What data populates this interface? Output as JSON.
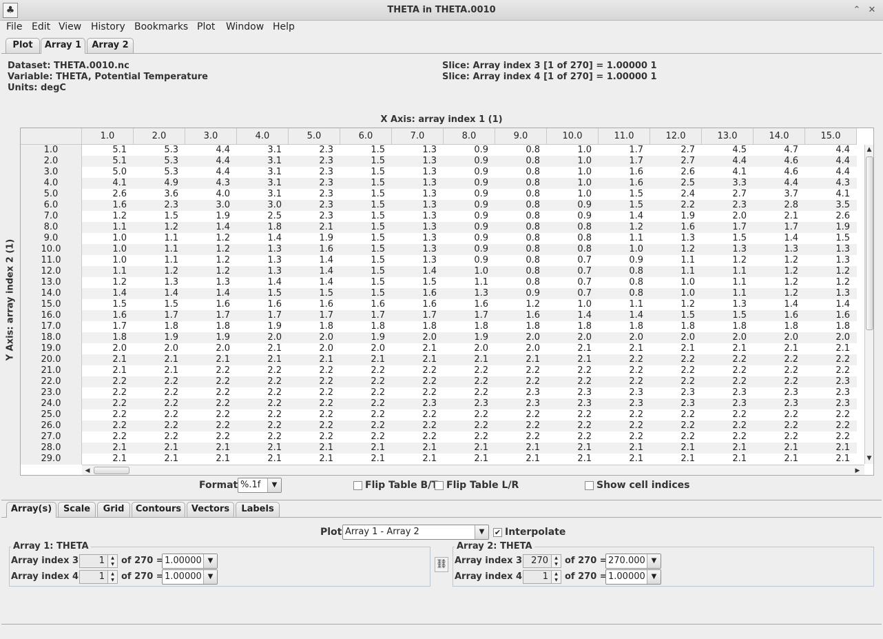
{
  "window": {
    "title": "THETA in THETA.0010"
  },
  "menu": [
    "File",
    "Edit",
    "View",
    "History",
    "Bookmarks",
    "Plot",
    "Window",
    "Help"
  ],
  "top_tabs": [
    "Plot",
    "Array 1",
    "Array 2"
  ],
  "info": {
    "dataset": "Dataset: THETA.0010.nc",
    "variable": "Variable: THETA, Potential Temperature",
    "units": "Units: degC",
    "slice3": "Slice: Array index 3 [1 of 270] = 1.00000 1",
    "slice4": "Slice: Array index 4 [1 of 270] = 1.00000 1"
  },
  "table": {
    "x_axis_label": "X Axis: array index 1 (1)",
    "y_axis_label": "Y Axis: array index 2 (1)",
    "columns": [
      "1.0",
      "2.0",
      "3.0",
      "4.0",
      "5.0",
      "6.0",
      "7.0",
      "8.0",
      "9.0",
      "10.0",
      "11.0",
      "12.0",
      "13.0",
      "14.0",
      "15.0"
    ],
    "rows": [
      {
        "label": "1.0",
        "values": [
          "5.1",
          "5.3",
          "4.4",
          "3.1",
          "2.3",
          "1.5",
          "1.3",
          "0.9",
          "0.8",
          "1.0",
          "1.7",
          "2.7",
          "4.5",
          "4.7",
          "4.4"
        ]
      },
      {
        "label": "2.0",
        "values": [
          "5.1",
          "5.3",
          "4.4",
          "3.1",
          "2.3",
          "1.5",
          "1.3",
          "0.9",
          "0.8",
          "1.0",
          "1.7",
          "2.7",
          "4.4",
          "4.6",
          "4.4"
        ]
      },
      {
        "label": "3.0",
        "values": [
          "5.0",
          "5.3",
          "4.4",
          "3.1",
          "2.3",
          "1.5",
          "1.3",
          "0.9",
          "0.8",
          "1.0",
          "1.6",
          "2.6",
          "4.1",
          "4.6",
          "4.4"
        ]
      },
      {
        "label": "4.0",
        "values": [
          "4.1",
          "4.9",
          "4.3",
          "3.1",
          "2.3",
          "1.5",
          "1.3",
          "0.9",
          "0.8",
          "1.0",
          "1.6",
          "2.5",
          "3.3",
          "4.4",
          "4.3"
        ]
      },
      {
        "label": "5.0",
        "values": [
          "2.6",
          "3.6",
          "4.0",
          "3.1",
          "2.3",
          "1.5",
          "1.3",
          "0.9",
          "0.8",
          "1.0",
          "1.5",
          "2.4",
          "2.7",
          "3.7",
          "4.1"
        ]
      },
      {
        "label": "6.0",
        "values": [
          "1.6",
          "2.3",
          "3.0",
          "3.0",
          "2.3",
          "1.5",
          "1.3",
          "0.9",
          "0.8",
          "0.9",
          "1.5",
          "2.2",
          "2.3",
          "2.8",
          "3.5"
        ]
      },
      {
        "label": "7.0",
        "values": [
          "1.2",
          "1.5",
          "1.9",
          "2.5",
          "2.3",
          "1.5",
          "1.3",
          "0.9",
          "0.8",
          "0.9",
          "1.4",
          "1.9",
          "2.0",
          "2.1",
          "2.6"
        ]
      },
      {
        "label": "8.0",
        "values": [
          "1.1",
          "1.2",
          "1.4",
          "1.8",
          "2.1",
          "1.5",
          "1.3",
          "0.9",
          "0.8",
          "0.8",
          "1.2",
          "1.6",
          "1.7",
          "1.7",
          "1.9"
        ]
      },
      {
        "label": "9.0",
        "values": [
          "1.0",
          "1.1",
          "1.2",
          "1.4",
          "1.9",
          "1.5",
          "1.3",
          "0.9",
          "0.8",
          "0.8",
          "1.1",
          "1.3",
          "1.5",
          "1.4",
          "1.5"
        ]
      },
      {
        "label": "10.0",
        "values": [
          "1.0",
          "1.1",
          "1.2",
          "1.3",
          "1.6",
          "1.5",
          "1.3",
          "0.9",
          "0.8",
          "0.8",
          "1.0",
          "1.2",
          "1.3",
          "1.3",
          "1.3"
        ]
      },
      {
        "label": "11.0",
        "values": [
          "1.0",
          "1.1",
          "1.2",
          "1.3",
          "1.4",
          "1.5",
          "1.3",
          "0.9",
          "0.8",
          "0.7",
          "0.9",
          "1.1",
          "1.2",
          "1.2",
          "1.3"
        ]
      },
      {
        "label": "12.0",
        "values": [
          "1.1",
          "1.2",
          "1.2",
          "1.3",
          "1.4",
          "1.5",
          "1.4",
          "1.0",
          "0.8",
          "0.7",
          "0.8",
          "1.1",
          "1.1",
          "1.2",
          "1.2"
        ]
      },
      {
        "label": "13.0",
        "values": [
          "1.2",
          "1.3",
          "1.3",
          "1.4",
          "1.4",
          "1.5",
          "1.5",
          "1.1",
          "0.8",
          "0.7",
          "0.8",
          "1.0",
          "1.1",
          "1.2",
          "1.2"
        ]
      },
      {
        "label": "14.0",
        "values": [
          "1.4",
          "1.4",
          "1.4",
          "1.5",
          "1.5",
          "1.5",
          "1.6",
          "1.3",
          "0.9",
          "0.7",
          "0.8",
          "1.0",
          "1.1",
          "1.2",
          "1.3"
        ]
      },
      {
        "label": "15.0",
        "values": [
          "1.5",
          "1.5",
          "1.6",
          "1.6",
          "1.6",
          "1.6",
          "1.6",
          "1.6",
          "1.2",
          "1.0",
          "1.1",
          "1.2",
          "1.3",
          "1.4",
          "1.4"
        ]
      },
      {
        "label": "16.0",
        "values": [
          "1.6",
          "1.7",
          "1.7",
          "1.7",
          "1.7",
          "1.7",
          "1.7",
          "1.7",
          "1.6",
          "1.4",
          "1.4",
          "1.5",
          "1.5",
          "1.6",
          "1.6"
        ]
      },
      {
        "label": "17.0",
        "values": [
          "1.7",
          "1.8",
          "1.8",
          "1.9",
          "1.8",
          "1.8",
          "1.8",
          "1.8",
          "1.8",
          "1.8",
          "1.8",
          "1.8",
          "1.8",
          "1.8",
          "1.8"
        ]
      },
      {
        "label": "18.0",
        "values": [
          "1.8",
          "1.9",
          "1.9",
          "2.0",
          "2.0",
          "1.9",
          "2.0",
          "1.9",
          "2.0",
          "2.0",
          "2.0",
          "2.0",
          "2.0",
          "2.0",
          "2.0"
        ]
      },
      {
        "label": "19.0",
        "values": [
          "2.0",
          "2.0",
          "2.0",
          "2.1",
          "2.0",
          "2.0",
          "2.1",
          "2.0",
          "2.0",
          "2.1",
          "2.1",
          "2.1",
          "2.1",
          "2.1",
          "2.1"
        ]
      },
      {
        "label": "20.0",
        "values": [
          "2.1",
          "2.1",
          "2.1",
          "2.1",
          "2.1",
          "2.1",
          "2.1",
          "2.1",
          "2.1",
          "2.1",
          "2.2",
          "2.2",
          "2.2",
          "2.2",
          "2.2"
        ]
      },
      {
        "label": "21.0",
        "values": [
          "2.1",
          "2.1",
          "2.2",
          "2.2",
          "2.2",
          "2.2",
          "2.2",
          "2.2",
          "2.2",
          "2.2",
          "2.2",
          "2.2",
          "2.2",
          "2.2",
          "2.2"
        ]
      },
      {
        "label": "22.0",
        "values": [
          "2.2",
          "2.2",
          "2.2",
          "2.2",
          "2.2",
          "2.2",
          "2.2",
          "2.2",
          "2.2",
          "2.2",
          "2.2",
          "2.2",
          "2.2",
          "2.2",
          "2.3"
        ]
      },
      {
        "label": "23.0",
        "values": [
          "2.2",
          "2.2",
          "2.2",
          "2.2",
          "2.2",
          "2.2",
          "2.2",
          "2.2",
          "2.3",
          "2.3",
          "2.3",
          "2.3",
          "2.3",
          "2.3",
          "2.3"
        ]
      },
      {
        "label": "24.0",
        "values": [
          "2.2",
          "2.2",
          "2.2",
          "2.2",
          "2.2",
          "2.2",
          "2.3",
          "2.3",
          "2.3",
          "2.3",
          "2.3",
          "2.3",
          "2.3",
          "2.3",
          "2.3"
        ]
      },
      {
        "label": "25.0",
        "values": [
          "2.2",
          "2.2",
          "2.2",
          "2.2",
          "2.2",
          "2.2",
          "2.2",
          "2.2",
          "2.2",
          "2.2",
          "2.2",
          "2.2",
          "2.2",
          "2.2",
          "2.2"
        ]
      },
      {
        "label": "26.0",
        "values": [
          "2.2",
          "2.2",
          "2.2",
          "2.2",
          "2.2",
          "2.2",
          "2.2",
          "2.2",
          "2.2",
          "2.2",
          "2.2",
          "2.2",
          "2.2",
          "2.2",
          "2.2"
        ]
      },
      {
        "label": "27.0",
        "values": [
          "2.2",
          "2.2",
          "2.2",
          "2.2",
          "2.2",
          "2.2",
          "2.2",
          "2.2",
          "2.2",
          "2.2",
          "2.2",
          "2.2",
          "2.2",
          "2.2",
          "2.2"
        ]
      },
      {
        "label": "28.0",
        "values": [
          "2.1",
          "2.1",
          "2.1",
          "2.1",
          "2.1",
          "2.1",
          "2.1",
          "2.1",
          "2.1",
          "2.1",
          "2.1",
          "2.1",
          "2.1",
          "2.1",
          "2.1"
        ]
      },
      {
        "label": "29.0",
        "values": [
          "2.1",
          "2.1",
          "2.1",
          "2.1",
          "2.1",
          "2.1",
          "2.1",
          "2.1",
          "2.1",
          "2.1",
          "2.1",
          "2.1",
          "2.1",
          "2.1",
          "2.1"
        ]
      }
    ]
  },
  "controls": {
    "format_label": "Format:",
    "format_value": "%.1f",
    "flip_bt": "Flip Table B/T",
    "flip_lr": "Flip Table L/R",
    "show_indices": "Show cell indices"
  },
  "bottom_tabs": [
    "Array(s)",
    "Scale",
    "Grid",
    "Contours",
    "Vectors",
    "Labels"
  ],
  "plot_panel": {
    "plot_label": "Plot",
    "plot_value": "Array 1 - Array 2",
    "interpolate_label": "Interpolate",
    "array1": {
      "legend": "Array 1: THETA",
      "idx3_label": "Array index 3:",
      "idx3_value": "1",
      "idx3_of": "of 270 =",
      "idx3_combo": "1.00000",
      "idx4_label": "Array index 4:",
      "idx4_value": "1",
      "idx4_of": "of 270 =",
      "idx4_combo": "1.00000"
    },
    "array2": {
      "legend": "Array 2: THETA",
      "idx3_label": "Array index 3:",
      "idx3_value": "270",
      "idx3_of": "of 270 =",
      "idx3_combo": "270.000",
      "idx4_label": "Array index 4:",
      "idx4_value": "1",
      "idx4_of": "of 270 =",
      "idx4_combo": "1.00000"
    }
  }
}
